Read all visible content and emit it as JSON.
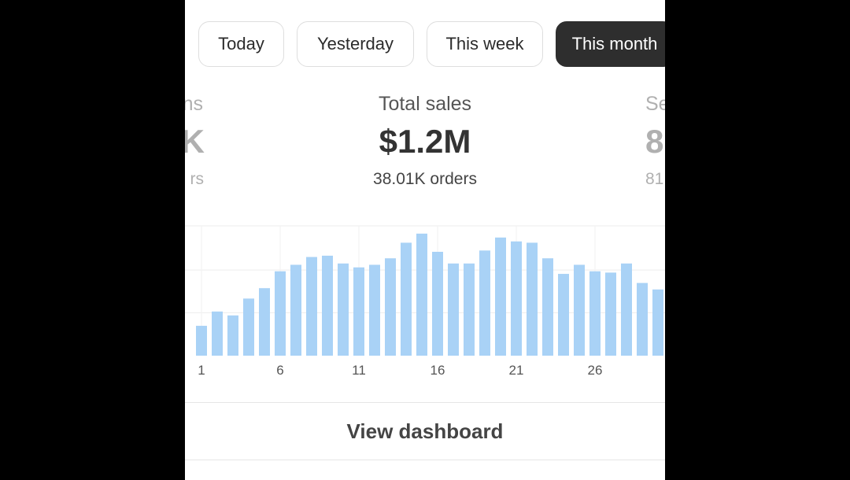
{
  "range_tabs": [
    {
      "label": "Today",
      "active": false
    },
    {
      "label": "Yesterday",
      "active": false
    },
    {
      "label": "This week",
      "active": false
    },
    {
      "label": "This month",
      "active": true
    }
  ],
  "stats": {
    "prev_partial": {
      "title": "ns",
      "value": "K",
      "sub": "rs"
    },
    "current": {
      "title": "Total sales",
      "value": "$1.2M",
      "sub": "38.01K orders"
    },
    "next_partial": {
      "title": "Se",
      "value": "8",
      "sub": "81"
    }
  },
  "chart_data": {
    "type": "bar",
    "x": [
      1,
      2,
      3,
      4,
      5,
      6,
      7,
      8,
      9,
      10,
      11,
      12,
      13,
      14,
      15,
      16,
      17,
      18,
      19,
      20,
      21,
      22,
      23,
      24,
      25,
      26,
      27,
      28,
      29,
      30
    ],
    "x_tick_labels": [
      "1",
      "6",
      "11",
      "16",
      "21",
      "26"
    ],
    "x_tick_values": [
      1,
      6,
      11,
      16,
      21,
      26
    ],
    "values": [
      23,
      34,
      31,
      44,
      52,
      65,
      70,
      76,
      77,
      71,
      68,
      70,
      75,
      87,
      94,
      80,
      71,
      71,
      81,
      91,
      88,
      87,
      75,
      63,
      70,
      65,
      64,
      71,
      56,
      51
    ],
    "ylim": [
      0,
      100
    ],
    "grid": true,
    "bar_color": "#a9d2f6",
    "title": "",
    "xlabel": "",
    "ylabel": ""
  },
  "footer": {
    "view_dashboard_label": "View dashboard"
  }
}
